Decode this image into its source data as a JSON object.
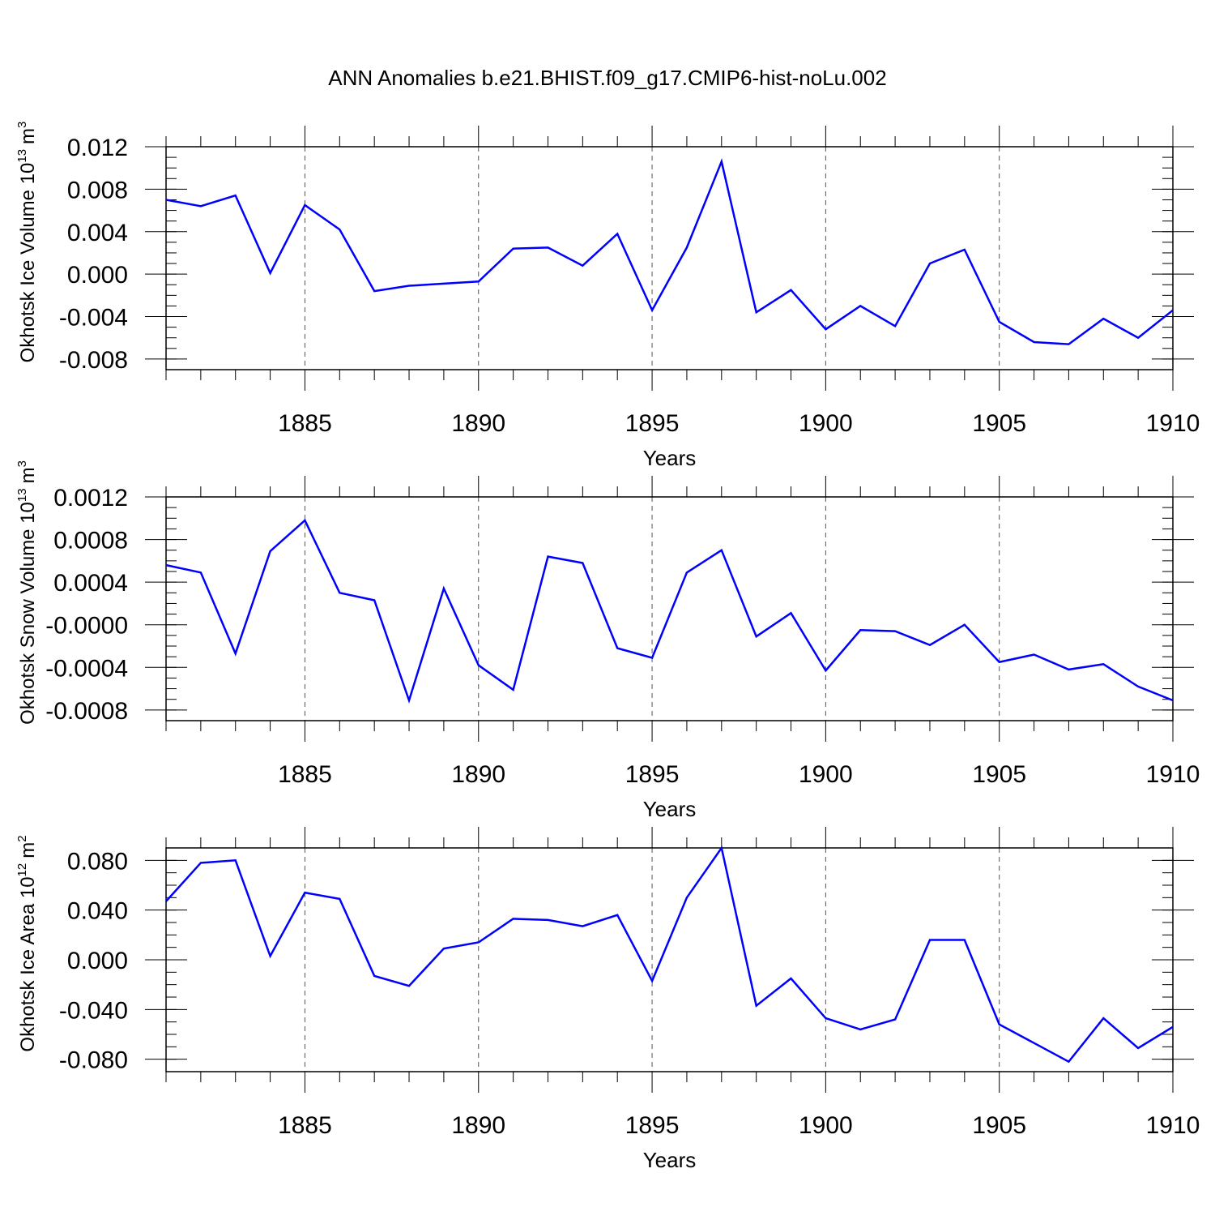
{
  "chart_data": {
    "title": "ANN Anomalies b.e21.BHIST.f09_g17.CMIP6-hist-noLu.002",
    "line_color": "#0000ff",
    "panels": [
      {
        "type": "line",
        "ylabel_main": "Okhotsk Ice Volume 10",
        "ylabel_exp": "13",
        "ylabel_unit": "m",
        "ylabel_unit_exp": "3",
        "xlabel": "Years",
        "x": [
          1881,
          1882,
          1883,
          1884,
          1885,
          1886,
          1887,
          1888,
          1889,
          1890,
          1891,
          1892,
          1893,
          1894,
          1895,
          1896,
          1897,
          1898,
          1899,
          1900,
          1901,
          1902,
          1903,
          1904,
          1905,
          1906,
          1907,
          1908,
          1909,
          1910
        ],
        "y": [
          0.007,
          0.0064,
          0.0074,
          0.0001,
          0.0065,
          0.0042,
          -0.0016,
          -0.0011,
          -0.0009,
          -0.0007,
          0.0024,
          0.0025,
          0.0008,
          0.0038,
          -0.0034,
          0.0025,
          0.0106,
          -0.0036,
          -0.0015,
          -0.0052,
          -0.003,
          -0.0049,
          0.001,
          0.0023,
          -0.0045,
          -0.0064,
          -0.0066,
          -0.0042,
          -0.006,
          -0.0034
        ],
        "xlim": [
          1881,
          1910
        ],
        "ylim": [
          -0.009,
          0.012
        ],
        "yticks": [
          "0.012",
          "0.008",
          "0.004",
          "0.000",
          "-0.004",
          "-0.008"
        ],
        "ytick_values": [
          0.012,
          0.008,
          0.004,
          0.0,
          -0.004,
          -0.008
        ],
        "yminor_step": 0.001,
        "xticks": [
          "1885",
          "1890",
          "1895",
          "1900",
          "1905",
          "1910"
        ],
        "xtick_values": [
          1885,
          1890,
          1895,
          1900,
          1905,
          1910
        ]
      },
      {
        "type": "line",
        "ylabel_main": "Okhotsk Snow Volume 10",
        "ylabel_exp": "13",
        "ylabel_unit": "m",
        "ylabel_unit_exp": "3",
        "xlabel": "Years",
        "x": [
          1881,
          1882,
          1883,
          1884,
          1885,
          1886,
          1887,
          1888,
          1889,
          1890,
          1891,
          1892,
          1893,
          1894,
          1895,
          1896,
          1897,
          1898,
          1899,
          1900,
          1901,
          1902,
          1903,
          1904,
          1905,
          1906,
          1907,
          1908,
          1909,
          1910
        ],
        "y": [
          0.00056,
          0.00049,
          -0.00027,
          0.00069,
          0.00098,
          0.0003,
          0.00023,
          -0.00071,
          0.00034,
          -0.00038,
          -0.00061,
          0.00064,
          0.00058,
          -0.00022,
          -0.00031,
          0.00049,
          0.0007,
          -0.00011,
          0.00011,
          -0.00043,
          -5e-05,
          -6e-05,
          -0.00019,
          0.0,
          -0.00035,
          -0.00028,
          -0.00042,
          -0.00037,
          -0.00058,
          -0.00071
        ],
        "xlim": [
          1881,
          1910
        ],
        "ylim": [
          -0.0009,
          0.0012
        ],
        "yticks": [
          "0.0012",
          "0.0008",
          "0.0004",
          "-0.0000",
          "-0.0004",
          "-0.0008"
        ],
        "ytick_values": [
          0.0012,
          0.0008,
          0.0004,
          0.0,
          -0.0004,
          -0.0008
        ],
        "yminor_step": 0.0001,
        "xticks": [
          "1885",
          "1890",
          "1895",
          "1900",
          "1905",
          "1910"
        ],
        "xtick_values": [
          1885,
          1890,
          1895,
          1900,
          1905,
          1910
        ]
      },
      {
        "type": "line",
        "ylabel_main": "Okhotsk Ice Area 10",
        "ylabel_exp": "12",
        "ylabel_unit": "m",
        "ylabel_unit_exp": "2",
        "xlabel": "Years",
        "x": [
          1881,
          1882,
          1883,
          1884,
          1885,
          1886,
          1887,
          1888,
          1889,
          1890,
          1891,
          1892,
          1893,
          1894,
          1895,
          1896,
          1897,
          1898,
          1899,
          1900,
          1901,
          1902,
          1903,
          1904,
          1905,
          1906,
          1907,
          1908,
          1909,
          1910
        ],
        "y": [
          0.047,
          0.078,
          0.08,
          0.003,
          0.054,
          0.049,
          -0.013,
          -0.021,
          0.009,
          0.014,
          0.033,
          0.032,
          0.027,
          0.036,
          -0.017,
          0.05,
          0.09,
          -0.037,
          -0.015,
          -0.047,
          -0.056,
          -0.048,
          0.016,
          0.016,
          -0.052,
          -0.067,
          -0.082,
          -0.047,
          -0.071,
          -0.054
        ],
        "xlim": [
          1881,
          1910
        ],
        "ylim": [
          -0.09,
          0.09
        ],
        "yticks": [
          "0.080",
          "0.040",
          "0.000",
          "-0.040",
          "-0.080"
        ],
        "ytick_values": [
          0.08,
          0.04,
          0.0,
          -0.04,
          -0.08
        ],
        "yminor_step": 0.01,
        "xticks": [
          "1885",
          "1890",
          "1895",
          "1900",
          "1905",
          "1910"
        ],
        "xtick_values": [
          1885,
          1890,
          1895,
          1900,
          1905,
          1910
        ]
      }
    ]
  }
}
